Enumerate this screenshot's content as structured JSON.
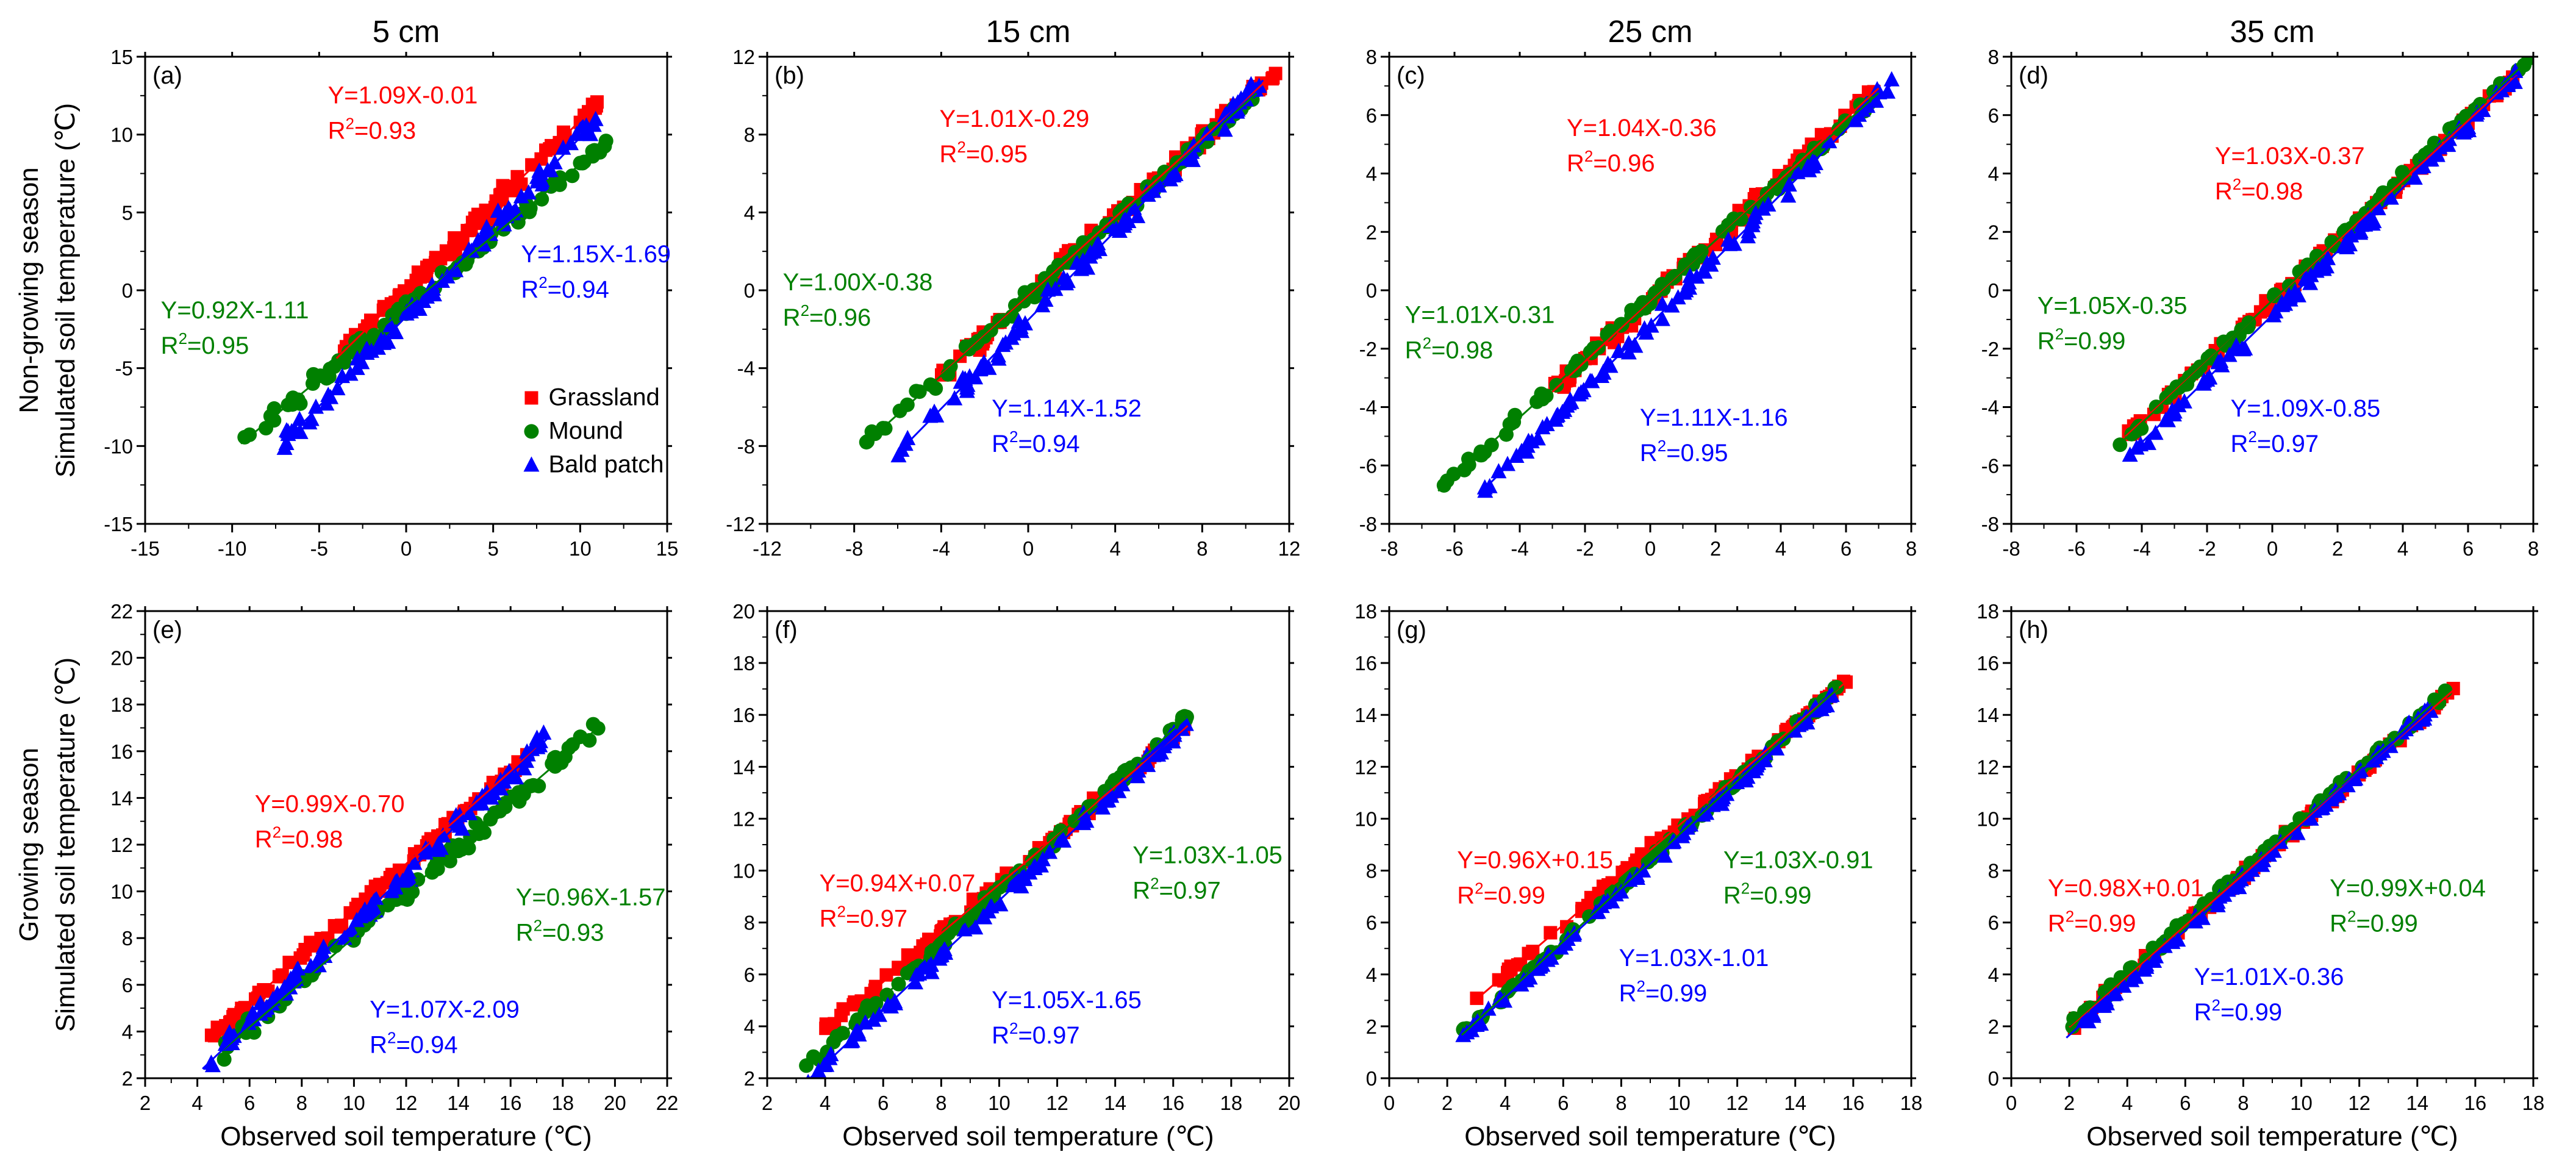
{
  "figure": {
    "column_titles": [
      "5 cm",
      "15 cm",
      "25 cm",
      "35 cm"
    ],
    "row_labels": [
      "Non-growing season",
      "Growing season"
    ],
    "ylabel": "Simulated soil temperature (℃)",
    "xlabel": "Observed soil temperature (℃)",
    "legend": [
      {
        "name": "Grassland",
        "color": "#ff0000",
        "marker": "square"
      },
      {
        "name": "Mound",
        "color": "#008000",
        "marker": "circle"
      },
      {
        "name": "Bald patch",
        "color": "#0000ff",
        "marker": "triangle"
      }
    ]
  },
  "chart_data": [
    {
      "panel": "(a)",
      "type": "scatter",
      "title": "5 cm",
      "xlim": [
        -15,
        15
      ],
      "ylim": [
        -15,
        15
      ],
      "xticks": [
        -15,
        -10,
        -5,
        0,
        5,
        10,
        15
      ],
      "yticks": [
        -15,
        -10,
        -5,
        0,
        5,
        10,
        15
      ],
      "obs_range": {
        "Grassland": [
          -4,
          11
        ],
        "Mound": [
          -9.5,
          11.5
        ],
        "Bald patch": [
          -7,
          11
        ]
      },
      "series": [
        {
          "name": "Grassland",
          "slope": 1.09,
          "intercept": -0.01,
          "r2": 0.93,
          "eq": "Y=1.09X-0.01",
          "r2_label": "0.93"
        },
        {
          "name": "Mound",
          "slope": 0.92,
          "intercept": -1.11,
          "r2": 0.95,
          "eq": "Y=0.92X-1.11",
          "r2_label": "0.95"
        },
        {
          "name": "Bald patch",
          "slope": 1.15,
          "intercept": -1.69,
          "r2": 0.94,
          "eq": "Y=1.15X-1.69",
          "r2_label": "0.94"
        }
      ]
    },
    {
      "panel": "(b)",
      "type": "scatter",
      "title": "15 cm",
      "xlim": [
        -12,
        12
      ],
      "ylim": [
        -12,
        12
      ],
      "xticks": [
        -12,
        -8,
        -4,
        0,
        4,
        8,
        12
      ],
      "yticks": [
        -12,
        -8,
        -4,
        0,
        4,
        8,
        12
      ],
      "obs_range": {
        "Grassland": [
          -4,
          11.5
        ],
        "Mound": [
          -7.5,
          10.5
        ],
        "Bald patch": [
          -6,
          10.8
        ]
      },
      "series": [
        {
          "name": "Grassland",
          "slope": 1.01,
          "intercept": -0.29,
          "r2": 0.95,
          "eq": "Y=1.01X-0.29",
          "r2_label": "0.95"
        },
        {
          "name": "Mound",
          "slope": 1.0,
          "intercept": -0.38,
          "r2": 0.96,
          "eq": "Y=1.00X-0.38",
          "r2_label": "0.96"
        },
        {
          "name": "Bald patch",
          "slope": 1.14,
          "intercept": -1.52,
          "r2": 0.94,
          "eq": "Y=1.14X-1.52",
          "r2_label": "0.94"
        }
      ]
    },
    {
      "panel": "(c)",
      "type": "scatter",
      "title": "25 cm",
      "xlim": [
        -8,
        8
      ],
      "ylim": [
        -8,
        8
      ],
      "xticks": [
        -8,
        -6,
        -4,
        -2,
        0,
        2,
        4,
        6,
        8
      ],
      "yticks": [
        -8,
        -6,
        -4,
        -2,
        0,
        2,
        4,
        6,
        8
      ],
      "obs_range": {
        "Grassland": [
          -3,
          7
        ],
        "Mound": [
          -6.5,
          7
        ],
        "Bald patch": [
          -5.2,
          7.5
        ]
      },
      "series": [
        {
          "name": "Grassland",
          "slope": 1.04,
          "intercept": -0.36,
          "r2": 0.96,
          "eq": "Y=1.04X-0.36",
          "r2_label": "0.96"
        },
        {
          "name": "Mound",
          "slope": 1.01,
          "intercept": -0.31,
          "r2": 0.98,
          "eq": "Y=1.01X-0.31",
          "r2_label": "0.98"
        },
        {
          "name": "Bald patch",
          "slope": 1.11,
          "intercept": -1.16,
          "r2": 0.95,
          "eq": "Y=1.11X-1.16",
          "r2_label": "0.95"
        }
      ]
    },
    {
      "panel": "(d)",
      "type": "scatter",
      "title": "35 cm",
      "xlim": [
        -8,
        8
      ],
      "ylim": [
        -8,
        8
      ],
      "xticks": [
        -8,
        -6,
        -4,
        -2,
        0,
        2,
        4,
        6,
        8
      ],
      "yticks": [
        -8,
        -6,
        -4,
        -2,
        0,
        2,
        4,
        6,
        8
      ],
      "obs_range": {
        "Grassland": [
          -4.5,
          7.5
        ],
        "Mound": [
          -4.7,
          8
        ],
        "Bald patch": [
          -4.5,
          7.5
        ]
      },
      "series": [
        {
          "name": "Grassland",
          "slope": 1.03,
          "intercept": -0.37,
          "r2": 0.98,
          "eq": "Y=1.03X-0.37",
          "r2_label": "0.98"
        },
        {
          "name": "Mound",
          "slope": 1.05,
          "intercept": -0.35,
          "r2": 0.99,
          "eq": "Y=1.05X-0.35",
          "r2_label": "0.99"
        },
        {
          "name": "Bald patch",
          "slope": 1.09,
          "intercept": -0.85,
          "r2": 0.97,
          "eq": "Y=1.09X-0.85",
          "r2_label": "0.97"
        }
      ]
    },
    {
      "panel": "(e)",
      "type": "scatter",
      "title": "",
      "xlim": [
        2,
        22
      ],
      "ylim": [
        2,
        22
      ],
      "xticks": [
        2,
        4,
        6,
        8,
        10,
        12,
        14,
        16,
        18,
        20,
        22
      ],
      "yticks": [
        2,
        4,
        6,
        8,
        10,
        12,
        14,
        16,
        18,
        20,
        22
      ],
      "obs_range": {
        "Grassland": [
          4.5,
          17
        ],
        "Mound": [
          5,
          19.5
        ],
        "Bald patch": [
          4.2,
          17.5
        ]
      },
      "series": [
        {
          "name": "Grassland",
          "slope": 0.99,
          "intercept": -0.7,
          "r2": 0.98,
          "eq": "Y=0.99X-0.70",
          "r2_label": "0.98"
        },
        {
          "name": "Mound",
          "slope": 0.96,
          "intercept": -1.57,
          "r2": 0.93,
          "eq": "Y=0.96X-1.57",
          "r2_label": "0.93"
        },
        {
          "name": "Bald patch",
          "slope": 1.07,
          "intercept": -2.09,
          "r2": 0.94,
          "eq": "Y=1.07X-2.09",
          "r2_label": "0.94"
        }
      ]
    },
    {
      "panel": "(f)",
      "type": "scatter",
      "title": "",
      "xlim": [
        2,
        20
      ],
      "ylim": [
        2,
        20
      ],
      "xticks": [
        2,
        4,
        6,
        8,
        10,
        12,
        14,
        16,
        18,
        20
      ],
      "yticks": [
        2,
        4,
        6,
        8,
        10,
        12,
        14,
        16,
        18,
        20
      ],
      "obs_range": {
        "Grassland": [
          4,
          16.5
        ],
        "Mound": [
          3.3,
          16.5
        ],
        "Bald patch": [
          3.3,
          16.5
        ]
      },
      "series": [
        {
          "name": "Grassland",
          "slope": 0.94,
          "intercept": 0.07,
          "r2": 0.97,
          "eq": "Y=0.94X+0.07",
          "r2_label": "0.97"
        },
        {
          "name": "Mound",
          "slope": 1.03,
          "intercept": -1.05,
          "r2": 0.97,
          "eq": "Y=1.03X-1.05",
          "r2_label": "0.97"
        },
        {
          "name": "Bald patch",
          "slope": 1.05,
          "intercept": -1.65,
          "r2": 0.97,
          "eq": "Y=1.05X-1.65",
          "r2_label": "0.97"
        }
      ]
    },
    {
      "panel": "(g)",
      "type": "scatter",
      "title": "",
      "xlim": [
        0,
        18
      ],
      "ylim": [
        0,
        18
      ],
      "xticks": [
        0,
        2,
        4,
        6,
        8,
        10,
        12,
        14,
        16,
        18
      ],
      "yticks": [
        0,
        2,
        4,
        6,
        8,
        10,
        12,
        14,
        16,
        18
      ],
      "obs_range": {
        "Grassland": [
          3,
          15.8
        ],
        "Mound": [
          2.5,
          15.5
        ],
        "Bald patch": [
          2.5,
          15.3
        ]
      },
      "series": [
        {
          "name": "Grassland",
          "slope": 0.96,
          "intercept": 0.15,
          "r2": 0.99,
          "eq": "Y=0.96X+0.15",
          "r2_label": "0.99"
        },
        {
          "name": "Mound",
          "slope": 1.03,
          "intercept": -0.91,
          "r2": 0.99,
          "eq": "Y=1.03X-0.91",
          "r2_label": "0.99"
        },
        {
          "name": "Bald patch",
          "slope": 1.03,
          "intercept": -1.01,
          "r2": 0.99,
          "eq": "Y=1.03X-1.01",
          "r2_label": "0.99"
        }
      ]
    },
    {
      "panel": "(h)",
      "type": "scatter",
      "title": "",
      "xlim": [
        0,
        18
      ],
      "ylim": [
        0,
        18
      ],
      "xticks": [
        0,
        2,
        4,
        6,
        8,
        10,
        12,
        14,
        16,
        18
      ],
      "yticks": [
        0,
        2,
        4,
        6,
        8,
        10,
        12,
        14,
        16,
        18
      ],
      "obs_range": {
        "Grassland": [
          2,
          15.3
        ],
        "Mound": [
          2,
          15
        ],
        "Bald patch": [
          1.9,
          14.5
        ]
      },
      "series": [
        {
          "name": "Grassland",
          "slope": 0.98,
          "intercept": 0.01,
          "r2": 0.99,
          "eq": "Y=0.98X+0.01",
          "r2_label": "0.99"
        },
        {
          "name": "Mound",
          "slope": 0.99,
          "intercept": 0.04,
          "r2": 0.99,
          "eq": "Y=0.99X+0.04",
          "r2_label": "0.99"
        },
        {
          "name": "Bald patch",
          "slope": 1.01,
          "intercept": -0.36,
          "r2": 0.99,
          "eq": "Y=1.01X-0.36",
          "r2_label": "0.99"
        }
      ]
    }
  ]
}
